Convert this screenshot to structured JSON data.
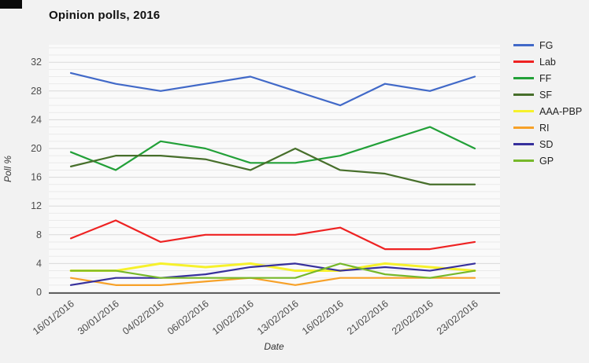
{
  "title": "Opinion polls, 2016",
  "chart_data": {
    "type": "line",
    "title": "Opinion polls, 2016",
    "xlabel": "Date",
    "ylabel": "Poll %",
    "ylim": [
      0,
      34.4
    ],
    "yticks": [
      0,
      4,
      8,
      12,
      16,
      20,
      24,
      28,
      32
    ],
    "grid": "horizontal minor gridlines every 1, major every 4",
    "legend_position": "right",
    "categories": [
      "16/01/2016",
      "30/01/2016",
      "04/02/2016",
      "06/02/2016",
      "10/02/2016",
      "13/02/2016",
      "16/02/2016",
      "21/02/2016",
      "22/02/2016",
      "23/02/2016"
    ],
    "series": [
      {
        "name": "FG",
        "color": "#4169c8",
        "values": [
          30.5,
          29,
          28,
          29,
          30,
          28,
          26,
          29,
          28,
          30
        ]
      },
      {
        "name": "Lab",
        "color": "#ee2222",
        "values": [
          7.5,
          10,
          7,
          8,
          8,
          8,
          9,
          6,
          6,
          7
        ]
      },
      {
        "name": "FF",
        "color": "#22a038",
        "values": [
          19.5,
          17,
          21,
          20,
          18,
          18,
          19,
          21,
          23,
          20
        ]
      },
      {
        "name": "SF",
        "color": "#476f2b",
        "values": [
          17.5,
          19,
          19,
          18.5,
          17,
          20,
          17,
          16.5,
          15,
          15
        ]
      },
      {
        "name": "AAA-PBP",
        "color": "#f6f12c",
        "values": [
          3,
          3,
          4,
          3.5,
          4,
          3,
          3,
          4,
          3.5,
          3
        ]
      },
      {
        "name": "RI",
        "color": "#f7a128",
        "values": [
          2,
          1,
          1,
          1.5,
          2,
          1,
          2,
          2,
          2,
          2
        ]
      },
      {
        "name": "SD",
        "color": "#37309c",
        "values": [
          1,
          2,
          2,
          2.5,
          3.5,
          4,
          3,
          3.5,
          3,
          4
        ]
      },
      {
        "name": "GP",
        "color": "#76b82a",
        "values": [
          3,
          3,
          2,
          2,
          2,
          2,
          4,
          2.5,
          2,
          3
        ]
      }
    ]
  }
}
